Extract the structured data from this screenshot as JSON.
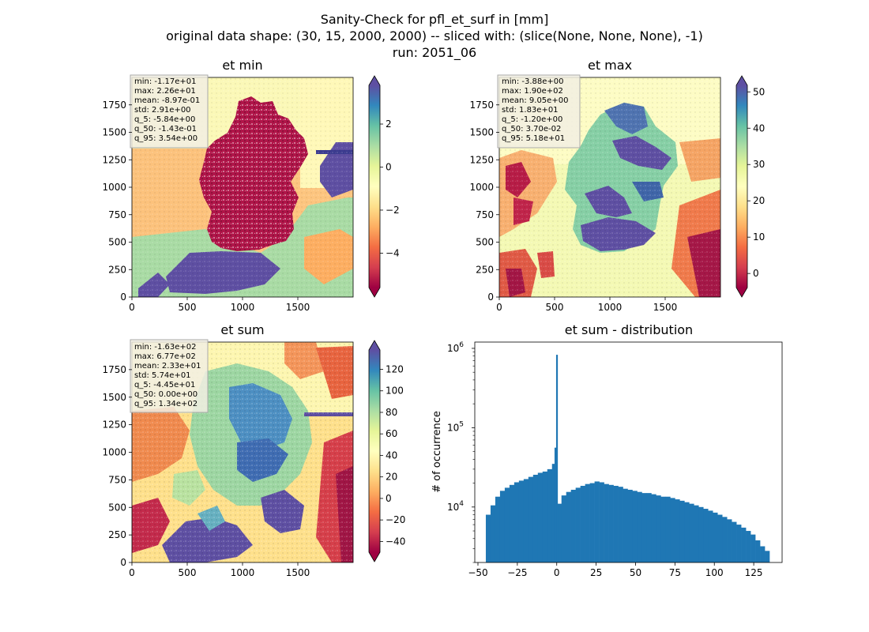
{
  "figure": {
    "title_lines": [
      "Sanity-Check for pfl_et_surf in [mm]",
      "original data shape: (30, 15, 2000, 2000) -- sliced with: (slice(None, None, None), -1)",
      "run: 2051_06"
    ]
  },
  "colors": {
    "spectral": [
      "#9e0142",
      "#d53e4f",
      "#f46d43",
      "#fdae61",
      "#fee08b",
      "#ffffbf",
      "#e6f598",
      "#abdda4",
      "#66c2a5",
      "#3288bd",
      "#5e4fa2"
    ],
    "hist_bar": "#1f77b4",
    "stats_box_bg": "#f2efe3",
    "stats_box_border": "#aaaaaa"
  },
  "chart_data": [
    {
      "type": "heatmap",
      "title": "et min",
      "x_ticks": [
        "0",
        "500",
        "1000",
        "1500"
      ],
      "y_ticks": [
        "0",
        "250",
        "500",
        "750",
        "1000",
        "1250",
        "1500",
        "1750"
      ],
      "xlim": [
        0,
        2000
      ],
      "ylim": [
        0,
        2000
      ],
      "colorbar": {
        "min": -5.6,
        "max": 3.8,
        "ticks": [
          2,
          0,
          -2,
          -4
        ],
        "tick_labels": [
          "2",
          "0",
          "−2",
          "−4"
        ],
        "extend": "both"
      },
      "stats": [
        "min: -1.17e+01",
        "max: 2.26e+01",
        "mean: -8.97e-01",
        "std: 2.91e+00",
        "q_5: -5.84e+00",
        "q_50: -1.43e-01",
        "q_95: 3.54e+00"
      ]
    },
    {
      "type": "heatmap",
      "title": "et max",
      "x_ticks": [
        "0",
        "500",
        "1000",
        "1500"
      ],
      "y_ticks": [
        "0",
        "250",
        "500",
        "750",
        "1000",
        "1250",
        "1500",
        "1750"
      ],
      "xlim": [
        0,
        2000
      ],
      "ylim": [
        0,
        2000
      ],
      "colorbar": {
        "min": -3.88,
        "max": 51.8,
        "ticks": [
          50,
          40,
          30,
          20,
          10,
          0
        ],
        "tick_labels": [
          "50",
          "40",
          "30",
          "20",
          "10",
          "0"
        ],
        "extend": "both"
      },
      "stats": [
        "min: -3.88e+00",
        "max: 1.90e+02",
        "mean: 9.05e+00",
        "std: 1.83e+01",
        "q_5: -1.20e+00",
        "q_50: 3.70e-02",
        "q_95: 5.18e+01"
      ]
    },
    {
      "type": "heatmap",
      "title": "et sum",
      "x_ticks": [
        "0",
        "500",
        "1000",
        "1500"
      ],
      "y_ticks": [
        "0",
        "250",
        "500",
        "750",
        "1000",
        "1250",
        "1500",
        "1750"
      ],
      "xlim": [
        0,
        2000
      ],
      "ylim": [
        0,
        2000
      ],
      "colorbar": {
        "min": -50,
        "max": 138,
        "ticks": [
          120,
          100,
          80,
          60,
          40,
          20,
          0,
          -20,
          -40
        ],
        "tick_labels": [
          "120",
          "100",
          "80",
          "60",
          "40",
          "20",
          "0",
          "−20",
          "−40"
        ],
        "extend": "both"
      },
      "stats": [
        "min: -1.63e+02",
        "max: 6.77e+02",
        "mean: 2.33e+01",
        "std: 5.74e+01",
        "q_5: -4.45e+01",
        "q_50: 0.00e+00",
        "q_95: 1.34e+02"
      ]
    },
    {
      "type": "bar",
      "title": "et sum - distribution",
      "ylabel": "# of occurrence",
      "xlabel": "",
      "y_scale": "log",
      "xlim": [
        -52,
        143
      ],
      "ylim": [
        2000,
        1200000
      ],
      "x_ticks": [
        -50,
        -25,
        0,
        25,
        50,
        75,
        100,
        125
      ],
      "x_tick_labels": [
        "−50",
        "−25",
        "0",
        "25",
        "50",
        "75",
        "100",
        "125"
      ],
      "y_ticks": [
        10000,
        100000,
        1000000
      ],
      "y_tick_labels": [
        "10^4",
        "10^5",
        "10^6"
      ],
      "spikes": [
        {
          "x": 0,
          "value": 830000
        },
        {
          "x": -1,
          "value": 56000
        }
      ],
      "bins": {
        "x": [
          -45,
          -42,
          -39,
          -36,
          -33,
          -30,
          -27,
          -24,
          -21,
          -18,
          -15,
          -12,
          -9,
          -6,
          -3,
          0,
          3,
          6,
          9,
          12,
          15,
          18,
          21,
          24,
          27,
          30,
          33,
          36,
          39,
          42,
          45,
          48,
          51,
          54,
          57,
          60,
          63,
          66,
          69,
          72,
          75,
          78,
          81,
          84,
          87,
          90,
          93,
          96,
          99,
          102,
          105,
          108,
          111,
          114,
          117,
          120,
          123,
          126,
          129,
          132
        ],
        "values": [
          8000,
          10500,
          13500,
          16000,
          17500,
          19000,
          20500,
          21500,
          22500,
          24000,
          25500,
          27000,
          28000,
          30000,
          35000,
          11000,
          14000,
          15500,
          16500,
          17500,
          18500,
          19500,
          20000,
          21000,
          20500,
          19500,
          19000,
          18500,
          18000,
          17000,
          16500,
          16000,
          15500,
          15000,
          15000,
          14500,
          14000,
          13500,
          13500,
          13000,
          12500,
          12000,
          11500,
          11000,
          10500,
          10000,
          9500,
          9000,
          8500,
          8000,
          7500,
          7000,
          6500,
          6000,
          5500,
          5000,
          4500,
          3800,
          3200,
          2800
        ]
      }
    }
  ]
}
